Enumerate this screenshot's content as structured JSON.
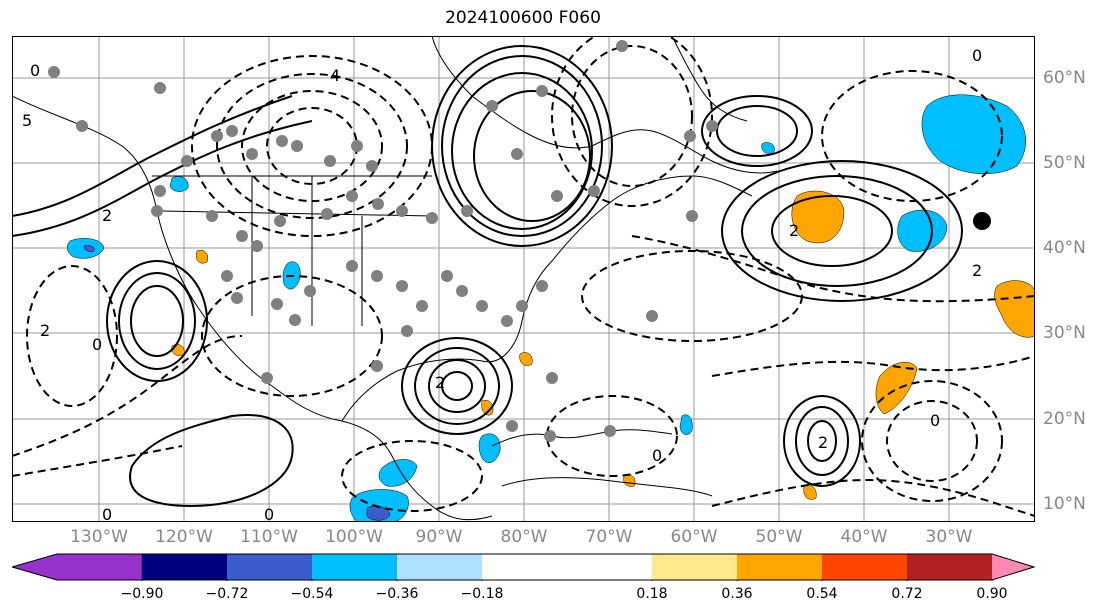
{
  "title": "2024100600 F060",
  "lat_labels": [
    "60°N",
    "50°N",
    "40°N",
    "30°N",
    "20°N",
    "10°N"
  ],
  "lon_labels": [
    "130°W",
    "120°W",
    "110°W",
    "100°W",
    "90°W",
    "80°W",
    "70°W",
    "60°W",
    "50°W",
    "40°W",
    "30°W"
  ],
  "colorbar": {
    "labels": [
      "−0.90",
      "−0.72",
      "−0.54",
      "−0.36",
      "−0.18",
      "0.18",
      "0.36",
      "0.54",
      "0.72",
      "0.90"
    ],
    "colors": [
      "#9932cc",
      "#000080",
      "#3a5ccd",
      "#00bfff",
      "#b0e0ff",
      "#ffffff",
      "#ffe98a",
      "#ffa500",
      "#ff4500",
      "#b22222",
      "#ff89b0"
    ]
  },
  "contour_labels": [
    "0",
    "2",
    "4",
    "5",
    "0",
    "2",
    "0",
    "2",
    "0",
    "2",
    "0",
    "2",
    "0",
    "2",
    "0"
  ]
}
